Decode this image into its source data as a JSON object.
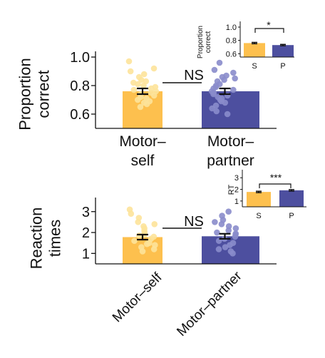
{
  "chart_data": [
    {
      "type": "bar",
      "id": "accuracy-main",
      "categories": [
        "Motor–self",
        "Motor–partner"
      ],
      "category_lines": [
        [
          "Motor–",
          "self"
        ],
        [
          "Motor–",
          "partner"
        ]
      ],
      "values": [
        0.76,
        0.76
      ],
      "errors": [
        0.02,
        0.02
      ],
      "ylabel_lines": [
        "Proportion",
        "correct"
      ],
      "ylim": [
        0.5,
        1.0
      ],
      "yticks": [
        1.0,
        0.8,
        0.6
      ],
      "ytick_labels": [
        "1.0",
        "0.8",
        "0.6"
      ],
      "annotation": "NS",
      "points": [
        [
          0.97,
          0.92,
          0.9,
          0.88,
          0.86,
          0.84,
          0.83,
          0.82,
          0.81,
          0.8,
          0.79,
          0.78,
          0.77,
          0.76,
          0.75,
          0.74,
          0.73,
          0.72,
          0.71,
          0.7,
          0.69,
          0.68,
          0.67,
          0.65
        ],
        [
          0.96,
          0.91,
          0.89,
          0.87,
          0.86,
          0.85,
          0.84,
          0.83,
          0.81,
          0.8,
          0.79,
          0.78,
          0.77,
          0.76,
          0.75,
          0.74,
          0.73,
          0.72,
          0.71,
          0.7,
          0.69,
          0.68,
          0.66,
          0.64,
          0.62,
          0.6
        ]
      ]
    },
    {
      "type": "bar",
      "id": "accuracy-inset",
      "categories": [
        "S",
        "P"
      ],
      "values": [
        0.76,
        0.73
      ],
      "errors": [
        0.01,
        0.01
      ],
      "ylabel_lines": [
        "Proportion",
        "correct"
      ],
      "ylim": [
        0.55,
        1.0
      ],
      "yticks": [
        1.0,
        0.8,
        0.6
      ],
      "ytick_labels": [
        "1.0",
        "0.8",
        "0.6"
      ],
      "annotation": "*"
    },
    {
      "type": "bar",
      "id": "rt-main",
      "categories": [
        "Motor–self",
        "Motor–partner"
      ],
      "values": [
        1.78,
        1.82
      ],
      "errors": [
        0.12,
        0.12
      ],
      "ylabel_lines": [
        "Reaction",
        "times"
      ],
      "ylim": [
        0.5,
        3.4
      ],
      "yticks": [
        3,
        2,
        1
      ],
      "ytick_labels": [
        "3",
        "2",
        "1"
      ],
      "annotation": "NS",
      "points": [
        [
          3.1,
          2.9,
          2.7,
          2.5,
          2.4,
          2.3,
          2.2,
          2.1,
          2.0,
          1.9,
          1.85,
          1.8,
          1.7,
          1.6,
          1.5,
          1.45,
          1.4,
          1.3,
          1.2,
          1.1
        ],
        [
          3.0,
          2.8,
          2.6,
          2.5,
          2.4,
          2.3,
          2.2,
          2.1,
          2.0,
          1.95,
          1.9,
          1.8,
          1.7,
          1.6,
          1.5,
          1.4,
          1.3,
          1.2,
          1.1,
          1.0
        ]
      ]
    },
    {
      "type": "bar",
      "id": "rt-inset",
      "categories": [
        "S",
        "P"
      ],
      "values": [
        1.78,
        1.92
      ],
      "errors": [
        0.06,
        0.06
      ],
      "ylabel_lines": [
        "RT"
      ],
      "ylim": [
        0.5,
        3.2
      ],
      "yticks": [
        3,
        2,
        1
      ],
      "ytick_labels": [
        "3",
        "2",
        "1"
      ],
      "annotation": "***"
    }
  ],
  "colors": {
    "self_bar": "#FDC04E",
    "partner_bar": "#4D4F9F",
    "self_point": "#FDE39A",
    "partner_point": "#8A8CCB",
    "ink": "#111111"
  }
}
